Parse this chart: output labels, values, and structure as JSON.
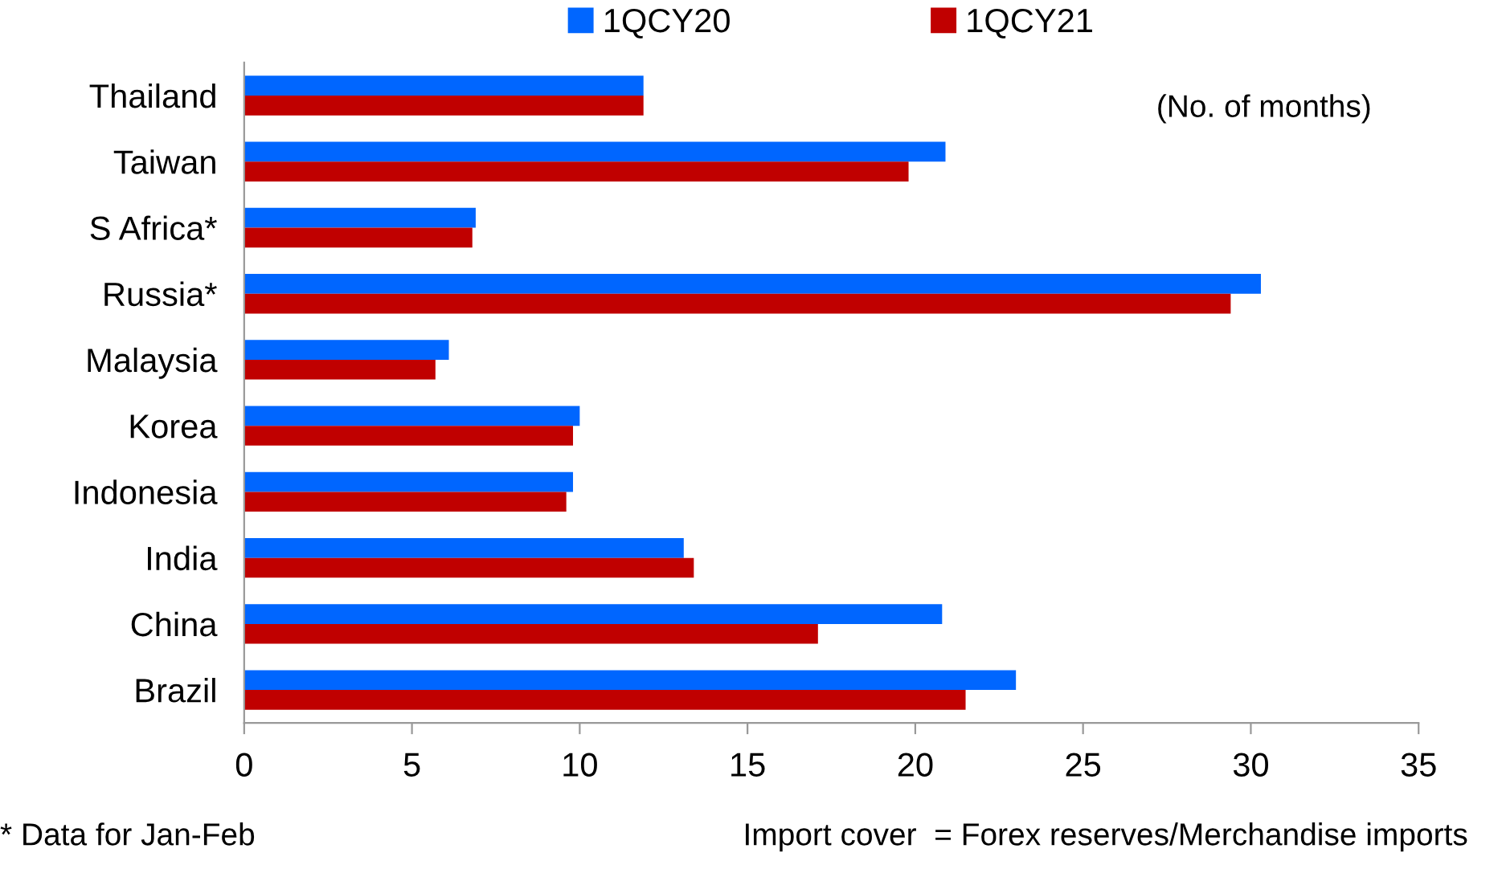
{
  "chart_data": {
    "type": "bar",
    "orientation": "horizontal",
    "categories": [
      "Thailand",
      "Taiwan",
      "S Africa*",
      "Russia*",
      "Malaysia",
      "Korea",
      "Indonesia",
      "India",
      "China",
      "Brazil"
    ],
    "series": [
      {
        "name": "1QCY20",
        "color": "#0066ff",
        "values": [
          11.9,
          20.9,
          6.9,
          30.3,
          6.1,
          10.0,
          9.8,
          13.1,
          20.8,
          23.0
        ]
      },
      {
        "name": "1QCY21",
        "color": "#c00000",
        "values": [
          11.9,
          19.8,
          6.8,
          29.4,
          5.7,
          9.8,
          9.6,
          13.4,
          17.1,
          21.5
        ]
      }
    ],
    "xlim": [
      0,
      35
    ],
    "xticks": [
      0,
      5,
      10,
      15,
      20,
      25,
      30,
      35
    ],
    "grid": false,
    "legend": "top",
    "annotations": [
      "(No. of months)",
      "* Data for Jan-Feb",
      "Import cover  = Forex reserves/Merchandise imports"
    ]
  }
}
